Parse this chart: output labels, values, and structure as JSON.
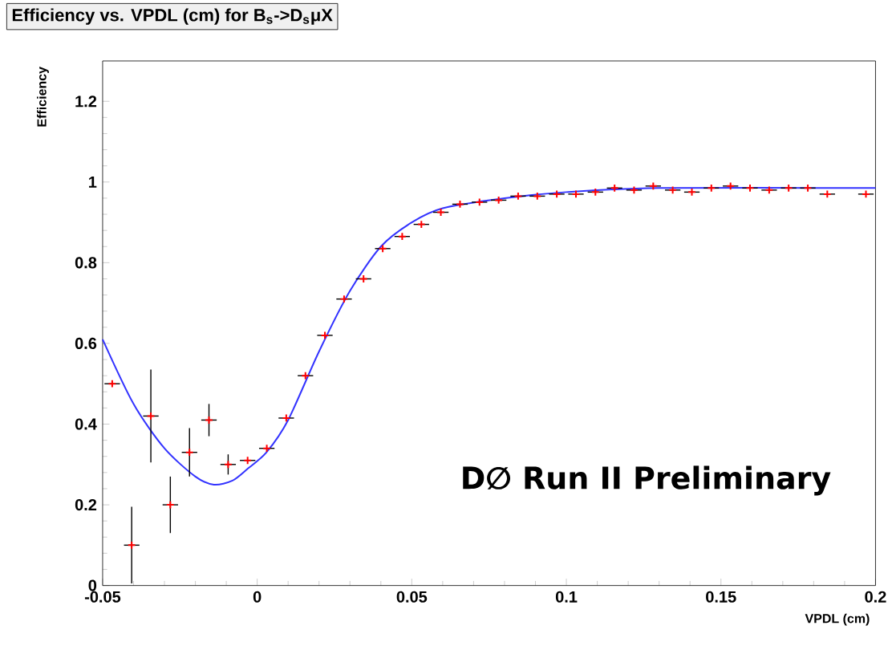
{
  "chart_data": {
    "type": "scatter",
    "title": "Efficiency vs. VPDL (cm) for B$_{s}$->D$_{s}$μX",
    "xlabel": "VPDL (cm)",
    "ylabel": "Efficiency",
    "annotations": [
      "D∅ Run II Preliminary"
    ],
    "xlim": [
      -0.05,
      0.2
    ],
    "ylim": [
      0,
      1.3
    ],
    "xticks": [
      -0.05,
      0,
      0.05,
      0.1,
      0.15,
      0.2
    ],
    "yticks": [
      0,
      0.2,
      0.4,
      0.6,
      0.8,
      1,
      1.2
    ],
    "grid": false,
    "series": [
      {
        "color": "#ff0000",
        "marker": "cross",
        "x": [
          -0.0469,
          -0.0406,
          -0.0344,
          -0.0281,
          -0.0219,
          -0.0156,
          -0.0094,
          -0.0031,
          0.0031,
          0.0094,
          0.0156,
          0.0219,
          0.0281,
          0.0344,
          0.0406,
          0.0469,
          0.0531,
          0.0594,
          0.0656,
          0.0719,
          0.0781,
          0.0844,
          0.0906,
          0.0969,
          0.1031,
          0.1094,
          0.1156,
          0.1219,
          0.1281,
          0.1344,
          0.1406,
          0.1469,
          0.1531,
          0.1594,
          0.1656,
          0.1719,
          0.1781,
          0.1844,
          0.1906,
          0.1969
        ],
        "values": [
          0.5,
          0.1,
          0.42,
          0.2,
          0.33,
          0.41,
          0.3,
          0.31,
          0.34,
          0.415,
          0.52,
          0.62,
          0.71,
          0.76,
          0.835,
          0.865,
          0.895,
          0.925,
          0.945,
          0.95,
          0.955,
          0.965,
          0.965,
          0.97,
          0.97,
          0.975,
          0.985,
          0.98,
          0.99,
          0.98,
          0.975,
          0.985,
          0.99,
          0.985,
          0.98,
          0.985,
          0.985,
          0.97,
          null,
          0.97
        ],
        "errors": [
          null,
          0.095,
          0.115,
          0.07,
          0.06,
          0.04,
          0.025,
          null,
          null,
          null,
          null,
          null,
          null,
          null,
          null,
          null,
          null,
          null,
          null,
          null,
          null,
          null,
          null,
          null,
          null,
          null,
          null,
          null,
          null,
          null,
          null,
          null,
          null,
          null,
          null,
          null,
          null,
          null,
          null,
          null
        ],
        "xerrors": [
          0.0025,
          0.0025,
          0.0025,
          0.0025,
          0.0025,
          0.0025,
          0.0025,
          0.0025,
          0.0025,
          0.0025,
          0.0025,
          0.0025,
          0.0025,
          0.0025,
          0.0025,
          0.0025,
          0.0025,
          0.0025,
          0.0025,
          0.0025,
          0.0025,
          0.0025,
          0.0025,
          0.0025,
          0.0025,
          0.0025,
          0.0025,
          0.0025,
          0.0025,
          0.0025,
          0.0025,
          0.0025,
          0.0025,
          0.0025,
          0.0025,
          0.0025,
          0.0025,
          0.0025,
          null,
          0.0025
        ]
      },
      {
        "type": "line",
        "color": "#3333ff",
        "marker": "none",
        "line_style": "solid",
        "x": [
          -0.05,
          -0.04,
          -0.03,
          -0.02,
          -0.014,
          -0.008,
          -0.003,
          0.003,
          0.01,
          0.02,
          0.03,
          0.04,
          0.05,
          0.06,
          0.08,
          0.1,
          0.13,
          0.2
        ],
        "values": [
          0.61,
          0.45,
          0.34,
          0.27,
          0.25,
          0.26,
          0.29,
          0.33,
          0.41,
          0.58,
          0.73,
          0.84,
          0.9,
          0.935,
          0.96,
          0.975,
          0.985,
          0.985
        ]
      }
    ]
  }
}
